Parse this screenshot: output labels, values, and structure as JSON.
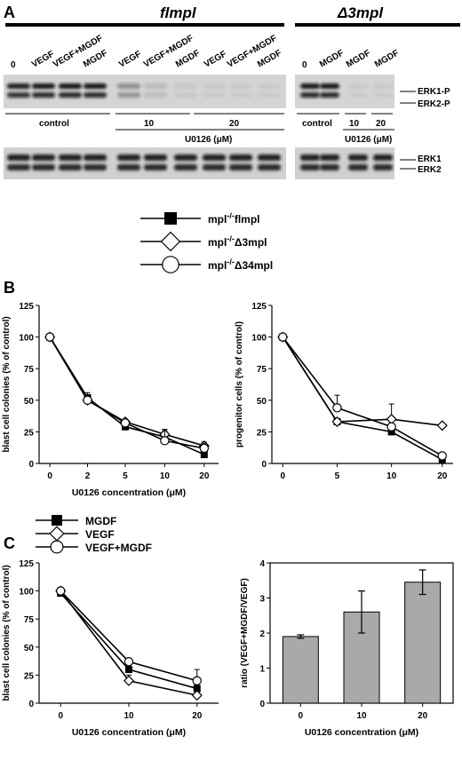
{
  "panel_a": {
    "letter": "A",
    "group_left": "flmpl",
    "group_right": "Δ3mpl",
    "lane_labels_left": [
      "0",
      "VEGF",
      "VEGF+MGDF",
      "MGDF",
      "VEGF",
      "VEGF+MGDF",
      "MGDF",
      "VEGF",
      "VEGF+MGDF",
      "MGDF"
    ],
    "lane_labels_right": [
      "0",
      "MGDF",
      "MGDF",
      "MGDF"
    ],
    "band_labels_top": [
      "ERK1-P",
      "ERK2-P"
    ],
    "band_labels_bottom": [
      "ERK1",
      "ERK2"
    ],
    "control_label": "control",
    "dose_10": "10",
    "dose_20": "20",
    "inhibitor_label": "U0126 (μM)"
  },
  "legend_b": {
    "items": [
      {
        "prefix": "mpl",
        "sup": "-/-",
        "suffix": "flmpl",
        "marker": "square-filled"
      },
      {
        "prefix": "mpl",
        "sup": "-/-",
        "suffix": "Δ3mpl",
        "marker": "diamond-open"
      },
      {
        "prefix": "mpl",
        "sup": "-/-",
        "suffix": "Δ34mpl",
        "marker": "circle-open"
      }
    ]
  },
  "panel_b_letter": "B",
  "panel_c_letter": "C",
  "legend_c": {
    "items": [
      {
        "label": "MGDF",
        "marker": "square-filled"
      },
      {
        "label": "VEGF",
        "marker": "diamond-open"
      },
      {
        "label": "VEGF+MGDF",
        "marker": "circle-open"
      }
    ]
  },
  "chart_data": [
    {
      "type": "line",
      "panel": "B-left",
      "ylabel": "blast cell colonies (% of control)",
      "xlabel": "U0126 concentration (μM)",
      "x": [
        "0",
        "2",
        "5",
        "10",
        "20"
      ],
      "ylim": [
        0,
        125
      ],
      "yticks": [
        "0",
        "25",
        "50",
        "75",
        "100",
        "125"
      ],
      "series": [
        {
          "name": "mpl-/-flmpl",
          "marker": "square-filled",
          "values": [
            100,
            52,
            29,
            21,
            7
          ],
          "errors": [
            2,
            2,
            2,
            4,
            2
          ]
        },
        {
          "name": "mpl-/-Δ3mpl",
          "marker": "diamond-open",
          "values": [
            100,
            50,
            33,
            23,
            14
          ],
          "errors": [
            2,
            2,
            2,
            4,
            3
          ]
        },
        {
          "name": "mpl-/-Δ34mpl",
          "marker": "circle-open",
          "values": [
            100,
            50,
            32,
            18,
            12
          ],
          "errors": [
            2,
            6,
            2,
            8,
            4
          ]
        }
      ]
    },
    {
      "type": "line",
      "panel": "B-right",
      "ylabel": "progenitor cells (% of control)",
      "xlabel": "",
      "x": [
        "0",
        "5",
        "10",
        "20"
      ],
      "ylim": [
        0,
        125
      ],
      "yticks": [
        "0",
        "25",
        "50",
        "75",
        "100",
        "125"
      ],
      "series": [
        {
          "name": "mpl-/-flmpl",
          "marker": "square-filled",
          "values": [
            100,
            33,
            25,
            3
          ],
          "errors": [
            1,
            1,
            4,
            1
          ]
        },
        {
          "name": "mpl-/-Δ3mpl",
          "marker": "diamond-open",
          "values": [
            100,
            33,
            35,
            30
          ],
          "errors": [
            1,
            1,
            12,
            1
          ]
        },
        {
          "name": "mpl-/-Δ34mpl",
          "marker": "circle-open",
          "values": [
            100,
            44,
            29,
            6
          ],
          "errors": [
            1,
            10,
            2,
            2
          ]
        }
      ]
    },
    {
      "type": "line",
      "panel": "C-left",
      "ylabel": "blast cell colonies (% of control)",
      "xlabel": "U0126 concentration (μM)",
      "x": [
        "0",
        "10",
        "20"
      ],
      "ylim": [
        0,
        125
      ],
      "yticks": [
        "0",
        "25",
        "50",
        "75",
        "100",
        "125"
      ],
      "series": [
        {
          "name": "MGDF",
          "marker": "square-filled",
          "values": [
            98,
            30,
            13
          ],
          "errors": [
            4,
            2,
            3
          ]
        },
        {
          "name": "VEGF",
          "marker": "diamond-open",
          "values": [
            100,
            20,
            7
          ],
          "errors": [
            3,
            5,
            2
          ]
        },
        {
          "name": "VEGF+MGDF",
          "marker": "circle-open",
          "values": [
            100,
            37,
            20
          ],
          "errors": [
            3,
            2,
            10
          ]
        }
      ]
    },
    {
      "type": "bar",
      "panel": "C-right",
      "ylabel": "ratio (VEGF+MGDF/VEGF)",
      "xlabel": "U0126 concentration (μM)",
      "categories": [
        "0",
        "10",
        "20"
      ],
      "values": [
        1.9,
        2.6,
        3.45
      ],
      "errors": [
        0.05,
        0.6,
        0.35
      ],
      "ylim": [
        0,
        4
      ],
      "yticks": [
        "0",
        "1",
        "2",
        "3",
        "4"
      ]
    }
  ]
}
